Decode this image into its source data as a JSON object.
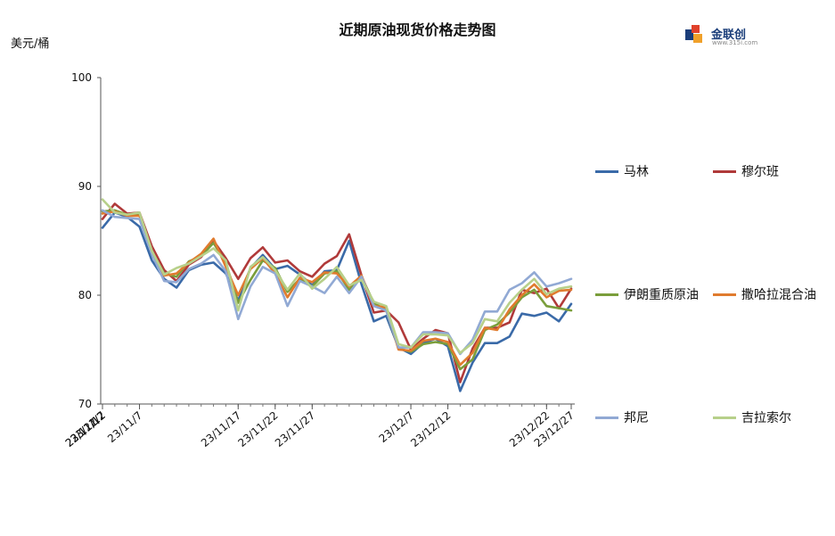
{
  "header": {
    "title": "近期原油现货价格走势图",
    "unit": "美元/桶",
    "logo_text": "金联创",
    "logo_sub": "www.315i.com"
  },
  "chart_data": {
    "type": "line",
    "title": "近期原油现货价格走势图",
    "ylabel": "美元/桶",
    "ylim": [
      70,
      100
    ],
    "yticks": [
      70,
      80,
      90,
      100
    ],
    "xtick_labels": [
      "23/11/2",
      "23/11/7",
      "23/11/12",
      "23/11/17",
      "23/11/22",
      "23/11/27",
      "23/12/2",
      "23/12/7",
      "23/12/12",
      "23/12/17",
      "23/12/22",
      "23/12/27"
    ],
    "x_dates": [
      "23/11/2",
      "23/11/3",
      "23/11/6",
      "23/11/7",
      "23/11/8",
      "23/11/9",
      "23/11/10",
      "23/11/13",
      "23/11/14",
      "23/11/15",
      "23/11/16",
      "23/11/17",
      "23/11/20",
      "23/11/21",
      "23/11/22",
      "23/11/23",
      "23/11/24",
      "23/11/27",
      "23/11/28",
      "23/11/29",
      "23/11/30",
      "23/12/1",
      "23/12/4",
      "23/12/5",
      "23/12/6",
      "23/12/7",
      "23/12/8",
      "23/12/11",
      "23/12/12",
      "23/12/13",
      "23/12/14",
      "23/12/15",
      "23/12/18",
      "23/12/19",
      "23/12/20",
      "23/12/21",
      "23/12/22",
      "23/12/26",
      "23/12/27"
    ],
    "grid": false,
    "legend_position": "right",
    "series": [
      {
        "name": "马林",
        "color": "#3a6aa8",
        "values": [
          86.2,
          87.6,
          87.2,
          86.3,
          83.2,
          81.5,
          80.7,
          82.3,
          82.8,
          83.0,
          82.0,
          79.5,
          82.5,
          83.7,
          82.4,
          82.7,
          81.9,
          80.9,
          82.2,
          82.3,
          85.0,
          81.0,
          77.6,
          78.1,
          75.2,
          74.6,
          75.6,
          76.0,
          75.3,
          71.2,
          73.8,
          75.6,
          75.6,
          76.2,
          78.3,
          78.1,
          78.4,
          77.6,
          79.2
        ]
      },
      {
        "name": "穆尔班",
        "color": "#b03a3a",
        "values": [
          87.0,
          88.4,
          87.5,
          87.6,
          84.5,
          82.3,
          81.3,
          82.8,
          83.5,
          85.0,
          83.4,
          81.5,
          83.4,
          84.4,
          83.0,
          83.2,
          82.2,
          81.7,
          82.9,
          83.6,
          85.6,
          81.8,
          78.4,
          78.6,
          77.5,
          75.0,
          76.0,
          76.8,
          76.5,
          72.0,
          75.1,
          77.0,
          77.0,
          77.5,
          80.5,
          80.2,
          80.6,
          78.8,
          80.6
        ]
      },
      {
        "name": "伊朗重质原油",
        "color": "#7a9e3b",
        "values": [
          87.7,
          87.8,
          87.4,
          87.4,
          84.0,
          82.0,
          81.7,
          83.1,
          83.6,
          84.8,
          83.0,
          79.3,
          81.4,
          83.2,
          82.5,
          80.3,
          81.5,
          80.8,
          82.0,
          82.2,
          80.5,
          81.7,
          79.3,
          78.6,
          75.1,
          74.8,
          75.5,
          75.7,
          75.5,
          73.2,
          74.1,
          76.8,
          77.3,
          78.4,
          79.8,
          80.5,
          79.0,
          78.8,
          78.6
        ]
      },
      {
        "name": "撒哈拉混合油",
        "color": "#e07b2e",
        "values": [
          87.5,
          87.7,
          87.3,
          87.3,
          83.9,
          81.8,
          82.0,
          83.0,
          83.8,
          85.2,
          82.6,
          80.0,
          82.4,
          83.4,
          82.0,
          79.8,
          81.6,
          81.2,
          82.1,
          82.0,
          80.8,
          81.8,
          79.0,
          78.9,
          75.0,
          74.9,
          75.8,
          76.0,
          75.7,
          73.6,
          74.7,
          77.0,
          76.8,
          78.7,
          80.0,
          81.0,
          79.8,
          80.4,
          80.5
        ]
      },
      {
        "name": "邦尼",
        "color": "#91a9d4",
        "values": [
          87.8,
          87.2,
          87.1,
          87.0,
          83.8,
          81.3,
          81.2,
          82.4,
          82.9,
          83.7,
          82.2,
          77.8,
          80.8,
          82.6,
          82.0,
          79.0,
          81.3,
          80.8,
          80.2,
          81.7,
          80.2,
          81.7,
          79.0,
          78.6,
          75.2,
          75.2,
          76.6,
          76.6,
          76.5,
          74.6,
          75.9,
          78.5,
          78.5,
          80.5,
          81.1,
          82.1,
          80.8,
          81.1,
          81.5
        ]
      },
      {
        "name": "吉拉索尔",
        "color": "#b7d08a",
        "values": [
          88.8,
          87.6,
          87.4,
          87.6,
          84.1,
          81.9,
          82.5,
          82.9,
          83.6,
          84.3,
          83.2,
          78.6,
          82.6,
          83.5,
          82.3,
          80.5,
          82.0,
          80.6,
          81.5,
          82.6,
          80.9,
          81.4,
          79.4,
          79.0,
          75.5,
          75.2,
          76.4,
          76.4,
          76.3,
          74.7,
          75.6,
          77.8,
          77.6,
          79.3,
          80.5,
          81.5,
          80.1,
          80.6,
          80.8
        ]
      }
    ]
  },
  "legend": [
    {
      "label": "马林",
      "color": "#3a6aa8"
    },
    {
      "label": "穆尔班",
      "color": "#b03a3a"
    },
    {
      "label": "伊朗重质原油",
      "color": "#7a9e3b"
    },
    {
      "label": "撒哈拉混合油",
      "color": "#e07b2e"
    },
    {
      "label": "邦尼",
      "color": "#91a9d4"
    },
    {
      "label": "吉拉索尔",
      "color": "#b7d08a"
    }
  ]
}
